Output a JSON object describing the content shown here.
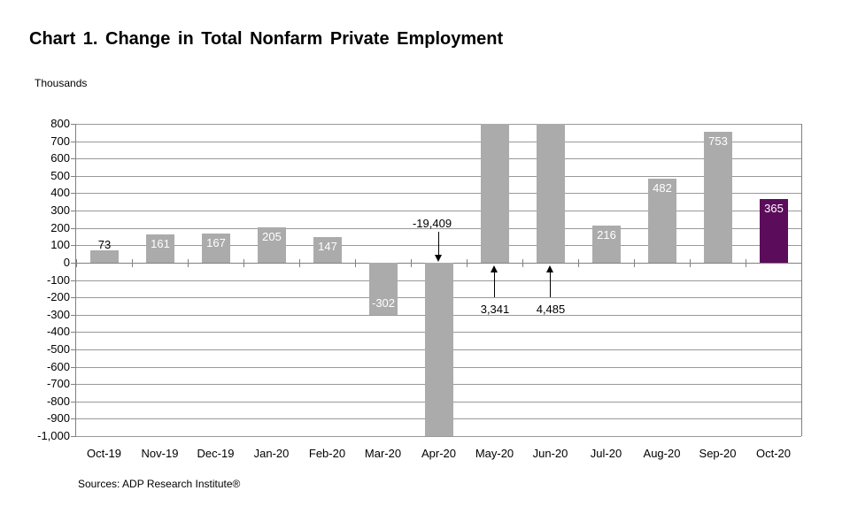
{
  "chart_data": {
    "type": "bar",
    "title": "Chart 1. Change in Total Nonfarm Private Employment",
    "ylabel": "Thousands",
    "source": "Sources: ADP Research Institute®",
    "ylim": [
      -1000,
      800
    ],
    "ytick_step": 100,
    "grid": true,
    "legend": "none",
    "categories": [
      "Oct-19",
      "Nov-19",
      "Dec-19",
      "Jan-20",
      "Feb-20",
      "Mar-20",
      "Apr-20",
      "May-20",
      "Jun-20",
      "Jul-20",
      "Aug-20",
      "Sep-20",
      "Oct-20"
    ],
    "values": [
      73,
      161,
      167,
      205,
      147,
      -302,
      -19409,
      3341,
      4485,
      216,
      482,
      753,
      365
    ],
    "bar_labels": [
      "73",
      "161",
      "167",
      "205",
      "147",
      "-302",
      "",
      "",
      "",
      "216",
      "482",
      "753",
      "365"
    ],
    "label_placement": [
      "above",
      "inside-top",
      "inside-top",
      "inside-top",
      "inside-top",
      "inside-bottom",
      "none",
      "none",
      "none",
      "inside-top",
      "inside-top",
      "inside-top",
      "inside-top"
    ],
    "clipped_indices": [
      6,
      7,
      8
    ],
    "annotations": [
      {
        "index": 6,
        "text": "-19,409",
        "arrow": "down"
      },
      {
        "index": 7,
        "text": "3,341",
        "arrow": "up"
      },
      {
        "index": 8,
        "text": "4,485",
        "arrow": "up"
      }
    ],
    "colors": {
      "bar_default": "#ABABAB",
      "bar_highlight": "#5B0D5B",
      "highlight_index": 12,
      "gridline": "#999999",
      "axis": "#808080",
      "label_inside": "#FFFFFF",
      "label_outside": "#000000",
      "annotation": "#000000"
    }
  }
}
